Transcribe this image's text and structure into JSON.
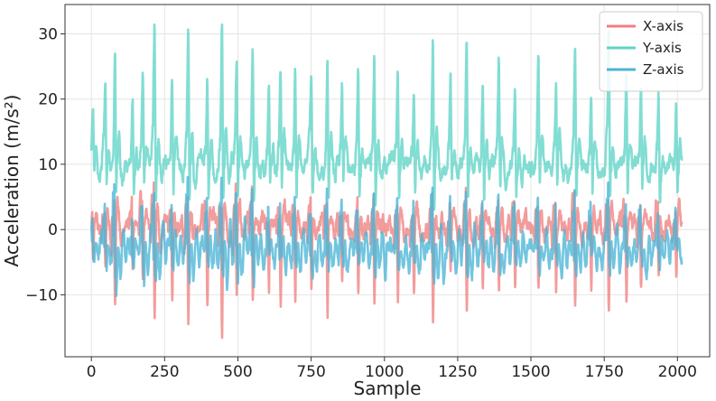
{
  "chart_data": {
    "type": "line",
    "title": "",
    "xlabel": "Sample",
    "ylabel": "Acceleration (m/s²)",
    "xlim": [
      -90,
      2110
    ],
    "ylim": [
      -19.5,
      34.5
    ],
    "xticks": [
      0,
      250,
      500,
      750,
      1000,
      1250,
      1500,
      1750,
      2000
    ],
    "yticks": [
      -10,
      0,
      10,
      20,
      30
    ],
    "ytick_labels": [
      "−10",
      "0",
      "10",
      "20",
      "30"
    ],
    "grid": true,
    "legend": "top-right",
    "n_samples": 2016,
    "gait_events": [
      [
        0,
        0.35
      ],
      [
        42,
        0.55
      ],
      [
        75,
        0.85
      ],
      [
        135,
        0.5
      ],
      [
        170,
        0.6
      ],
      [
        210,
        1.0
      ],
      [
        270,
        0.65
      ],
      [
        325,
        0.95
      ],
      [
        390,
        0.7
      ],
      [
        440,
        1.0
      ],
      [
        490,
        0.75
      ],
      [
        545,
        0.9
      ],
      [
        600,
        0.55
      ],
      [
        640,
        0.7
      ],
      [
        690,
        0.65
      ],
      [
        745,
        0.6
      ],
      [
        800,
        0.8
      ],
      [
        850,
        0.6
      ],
      [
        905,
        0.7
      ],
      [
        960,
        0.85
      ],
      [
        1040,
        0.75
      ],
      [
        1095,
        0.6
      ],
      [
        1160,
        0.95
      ],
      [
        1220,
        0.6
      ],
      [
        1275,
        0.85
      ],
      [
        1330,
        0.65
      ],
      [
        1385,
        0.7
      ],
      [
        1440,
        0.6
      ],
      [
        1520,
        0.7
      ],
      [
        1580,
        0.65
      ],
      [
        1645,
        0.85
      ],
      [
        1700,
        0.6
      ],
      [
        1760,
        0.9
      ],
      [
        1820,
        0.65
      ],
      [
        1870,
        0.6
      ],
      [
        1930,
        0.55
      ],
      [
        1990,
        0.5
      ]
    ],
    "series": [
      {
        "name": "X-axis",
        "color": "#f08080",
        "baseline": 0.5,
        "spike_gain": 12,
        "noise": 2.2
      },
      {
        "name": "Y-axis",
        "color": "#5fd3c6",
        "baseline": 9.8,
        "spike_gain": 21,
        "noise": 2.0
      },
      {
        "name": "Z-axis",
        "color": "#4ab5d6",
        "baseline": -2.5,
        "spike_gain": 14,
        "noise": 1.8
      }
    ]
  }
}
